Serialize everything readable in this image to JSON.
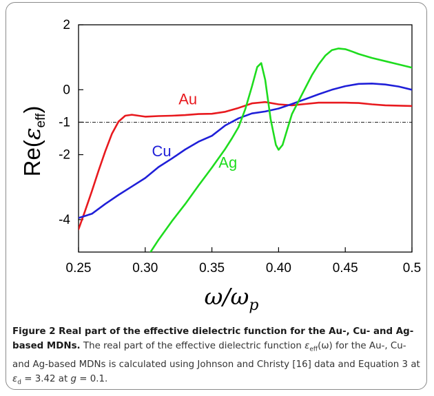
{
  "chart_data": {
    "type": "line",
    "xlabel": "ω/ω",
    "xlabel_sub": "p",
    "ylabel": "Re(",
    "ylabel_sym": "ε",
    "ylabel_sub": "eff",
    "ylabel_close": ")",
    "xlim": [
      0.25,
      0.5
    ],
    "ylim": [
      -5,
      2
    ],
    "x_ticks": [
      0.25,
      0.3,
      0.35,
      0.4,
      0.45,
      0.5
    ],
    "x_tick_labels": [
      "0.25",
      "0.30",
      "0.35",
      "0.40",
      "0.45",
      "0.5"
    ],
    "y_ticks": [
      2,
      0,
      -1,
      -2,
      -4
    ],
    "y_tick_labels": [
      "2",
      "0",
      "-1",
      "-2",
      "-4"
    ],
    "grid": false,
    "reference_line": {
      "y": -1,
      "style": "dash-dot"
    },
    "series": [
      {
        "name": "Au",
        "color": "#e8191e",
        "label_at": [
          0.325,
          -0.45
        ],
        "x": [
          0.25,
          0.255,
          0.26,
          0.265,
          0.27,
          0.275,
          0.28,
          0.285,
          0.29,
          0.295,
          0.3,
          0.31,
          0.32,
          0.33,
          0.34,
          0.35,
          0.36,
          0.37,
          0.38,
          0.39,
          0.4,
          0.41,
          0.42,
          0.43,
          0.44,
          0.45,
          0.46,
          0.47,
          0.48,
          0.49,
          0.5
        ],
        "y": [
          -4.3,
          -3.72,
          -3.12,
          -2.5,
          -1.9,
          -1.36,
          -0.98,
          -0.8,
          -0.77,
          -0.8,
          -0.83,
          -0.81,
          -0.8,
          -0.78,
          -0.75,
          -0.74,
          -0.68,
          -0.56,
          -0.42,
          -0.38,
          -0.45,
          -0.48,
          -0.44,
          -0.4,
          -0.4,
          -0.4,
          -0.41,
          -0.45,
          -0.48,
          -0.49,
          -0.5
        ]
      },
      {
        "name": "Cu",
        "color": "#1f1fd8",
        "label_at": [
          0.305,
          -2.05
        ],
        "x": [
          0.25,
          0.26,
          0.27,
          0.28,
          0.29,
          0.3,
          0.31,
          0.32,
          0.33,
          0.34,
          0.35,
          0.36,
          0.37,
          0.38,
          0.39,
          0.4,
          0.41,
          0.42,
          0.43,
          0.44,
          0.45,
          0.46,
          0.47,
          0.48,
          0.49,
          0.5
        ],
        "y": [
          -3.95,
          -3.82,
          -3.52,
          -3.24,
          -2.98,
          -2.72,
          -2.38,
          -2.12,
          -1.84,
          -1.6,
          -1.42,
          -1.1,
          -0.88,
          -0.73,
          -0.67,
          -0.58,
          -0.44,
          -0.29,
          -0.14,
          0.0,
          0.11,
          0.18,
          0.19,
          0.16,
          0.1,
          0.0
        ]
      },
      {
        "name": "Ag",
        "color": "#1edc1e",
        "label_at": [
          0.355,
          -2.4
        ],
        "x": [
          0.304,
          0.31,
          0.32,
          0.33,
          0.34,
          0.35,
          0.36,
          0.365,
          0.37,
          0.375,
          0.38,
          0.384,
          0.387,
          0.39,
          0.394,
          0.398,
          0.4,
          0.403,
          0.407,
          0.41,
          0.415,
          0.42,
          0.425,
          0.43,
          0.435,
          0.44,
          0.445,
          0.45,
          0.455,
          0.46,
          0.47,
          0.48,
          0.49,
          0.5
        ],
        "y": [
          -5.0,
          -4.62,
          -4.05,
          -3.52,
          -2.95,
          -2.4,
          -1.82,
          -1.5,
          -1.15,
          -0.6,
          0.1,
          0.7,
          0.82,
          0.3,
          -0.9,
          -1.7,
          -1.85,
          -1.7,
          -1.15,
          -0.75,
          -0.35,
          0.05,
          0.45,
          0.78,
          1.05,
          1.22,
          1.27,
          1.25,
          1.18,
          1.1,
          0.98,
          0.88,
          0.78,
          0.68
        ]
      }
    ]
  },
  "caption": {
    "title": "Figure 2 Real part of the effective dielectric function for the Au-, Cu- and Ag-based MDNs.",
    "body_1": " The real part of the effective dielectric function ",
    "eps": "ε",
    "eff": "eff",
    "omega_arg": "(ω)",
    "body_2": " for the Au-, Cu- and Ag-based MDNs is calculated using Johnson and Christy [16] data and Equation 3 at ",
    "d": "d",
    "eq_d": " = 3.42 at ",
    "g": "g",
    "eq_g": " = 0.1."
  }
}
